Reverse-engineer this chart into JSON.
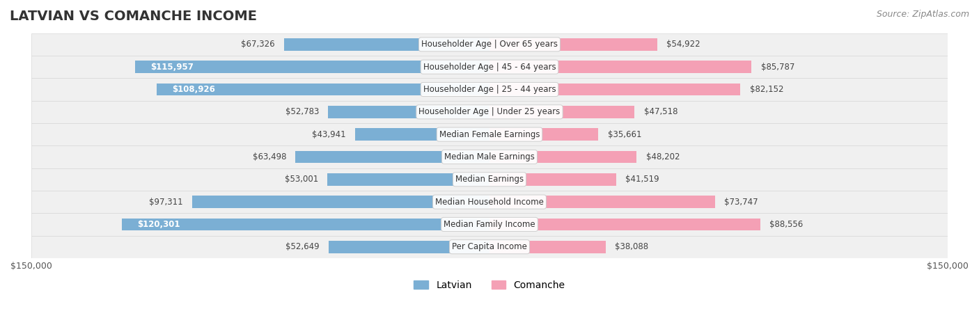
{
  "title": "LATVIAN VS COMANCHE INCOME",
  "source": "Source: ZipAtlas.com",
  "max_value": 150000,
  "categories": [
    "Per Capita Income",
    "Median Family Income",
    "Median Household Income",
    "Median Earnings",
    "Median Male Earnings",
    "Median Female Earnings",
    "Householder Age | Under 25 years",
    "Householder Age | 25 - 44 years",
    "Householder Age | 45 - 64 years",
    "Householder Age | Over 65 years"
  ],
  "latvian_values": [
    52649,
    120301,
    97311,
    53001,
    63498,
    43941,
    52783,
    108926,
    115957,
    67326
  ],
  "comanche_values": [
    38088,
    88556,
    73747,
    41519,
    48202,
    35661,
    47518,
    82152,
    85787,
    54922
  ],
  "latvian_labels": [
    "$52,649",
    "$120,301",
    "$97,311",
    "$53,001",
    "$63,498",
    "$43,941",
    "$52,783",
    "$108,926",
    "$115,957",
    "$67,326"
  ],
  "comanche_labels": [
    "$38,088",
    "$88,556",
    "$73,747",
    "$41,519",
    "$48,202",
    "$35,661",
    "$47,518",
    "$82,152",
    "$85,787",
    "$54,922"
  ],
  "latvian_color": "#7bafd4",
  "latvian_color_dark": "#5b9dc9",
  "comanche_color": "#f4a0b5",
  "comanche_color_dark": "#e8728e",
  "bar_height": 0.55,
  "row_bg_color": "#f0f0f0",
  "row_bg_alt": "#e8e8e8",
  "label_threshold": 100000,
  "background_color": "#ffffff",
  "title_fontsize": 14,
  "legend_fontsize": 10,
  "tick_fontsize": 9,
  "axis_label_fontsize": 8
}
